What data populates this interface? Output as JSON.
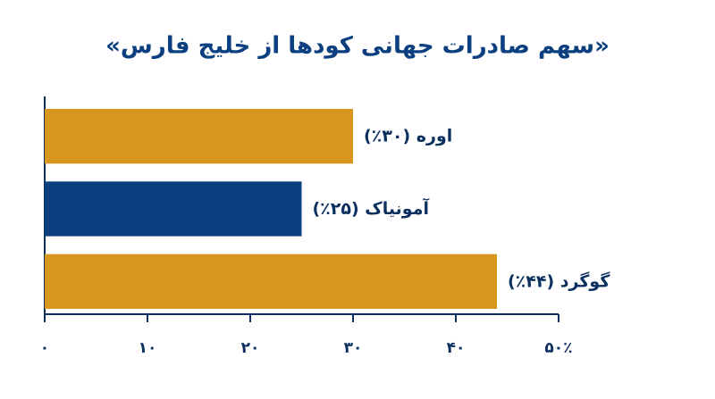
{
  "chart_data": {
    "type": "barh",
    "title": "«سهم صادرات جهانی کودها از خلیج فارس»",
    "categories": [
      "اوره",
      "آمونیاک",
      "گوگرد"
    ],
    "values": [
      30,
      25,
      44
    ],
    "value_labels": [
      "(۳۰٪)",
      "(۲۵٪)",
      "(۴۴٪)"
    ],
    "colors": [
      "#d9961f",
      "#0b3f7f",
      "#d9961f"
    ],
    "xlim": [
      0,
      50
    ],
    "xticks": [
      {
        "value": 0,
        "label": "۰"
      },
      {
        "value": 10,
        "label": "۱۰"
      },
      {
        "value": 20,
        "label": "۲۰"
      },
      {
        "value": 30,
        "label": "۳۰"
      },
      {
        "value": 40,
        "label": "۴۰"
      },
      {
        "value": 50,
        "label": "۵۰٪"
      }
    ]
  }
}
